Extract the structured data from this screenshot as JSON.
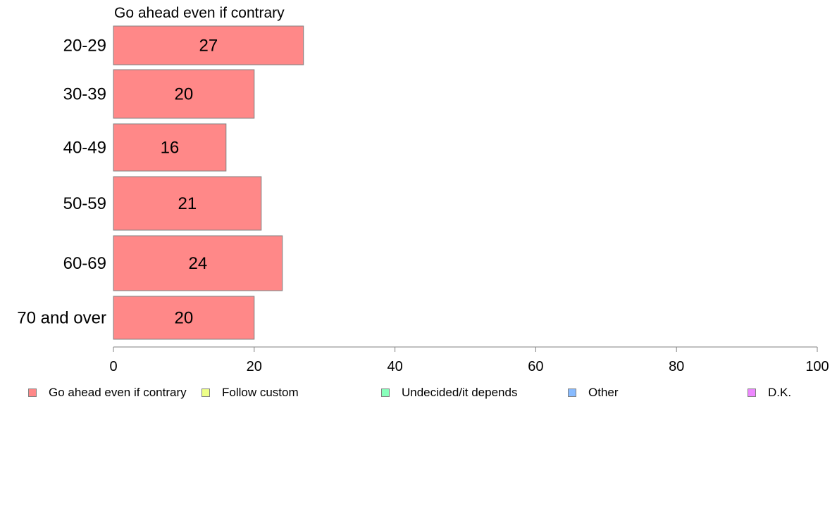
{
  "chart_data": {
    "type": "bar",
    "orientation": "horizontal",
    "title": "Go ahead even if contrary",
    "categories": [
      "20-29",
      "30-39",
      "40-49",
      "50-59",
      "60-69",
      "70 and over"
    ],
    "values": [
      27,
      20,
      16,
      21,
      24,
      20
    ],
    "xlim": [
      0,
      100
    ],
    "xticks": [
      0,
      20,
      40,
      60,
      80,
      100
    ],
    "grid": false,
    "legend_position": "bottom",
    "legend": [
      {
        "label": "Go ahead even if contrary",
        "color": "#FF8888"
      },
      {
        "label": "Follow custom",
        "color": "#EEFF88"
      },
      {
        "label": "Undecided/it depends",
        "color": "#88FFBB"
      },
      {
        "label": "Other",
        "color": "#88BBFF"
      },
      {
        "label": "D.K.",
        "color": "#EE88FF"
      }
    ],
    "bar_color": "#FF8888",
    "bar_border_color": "#808080",
    "axis_color": "#808080"
  }
}
